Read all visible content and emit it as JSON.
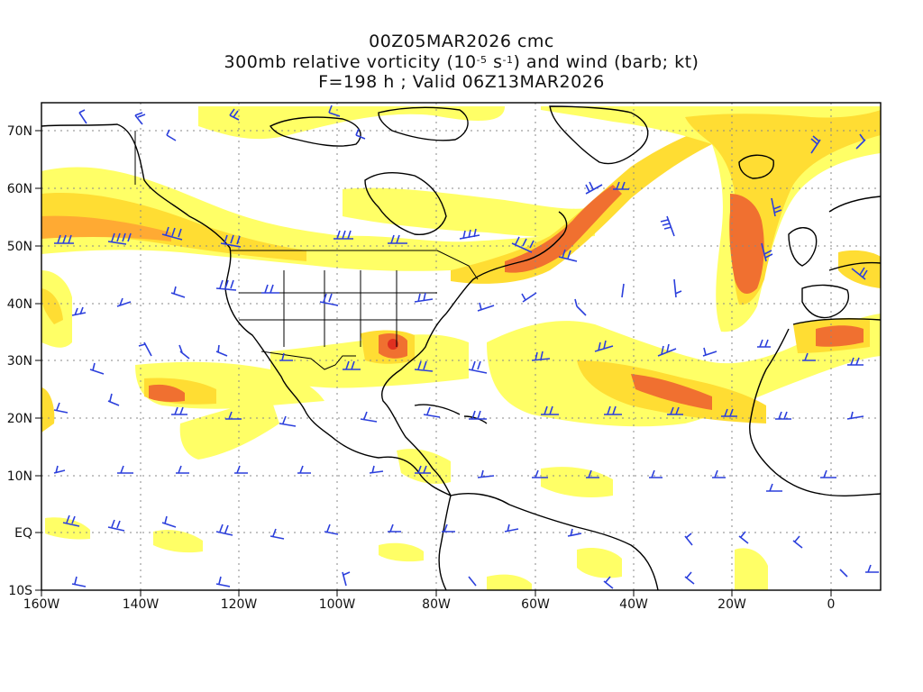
{
  "title": {
    "line1": "00Z05MAR2026 cmc",
    "line2_prefix": "300mb relative vorticity (10",
    "line2_exp1": "-5",
    "line2_mid": " s",
    "line2_exp2": "-1",
    "line2_suffix": ") and wind (barb; kt)",
    "line3": "F=198 h ; Valid 06Z13MAR2026"
  },
  "axes": {
    "lon_labels": [
      "160W",
      "140W",
      "120W",
      "100W",
      "80W",
      "60W",
      "40W",
      "20W",
      "0"
    ],
    "lat_labels": [
      "70N",
      "60N",
      "50N",
      "40N",
      "30N",
      "20N",
      "10N",
      "EQ",
      "10S"
    ],
    "lon_range": [
      -160,
      10
    ],
    "lat_range": [
      -10,
      75
    ]
  },
  "colors": {
    "vorticity_light": "#ffff66",
    "vorticity_mid1": "#ffdd33",
    "vorticity_mid2": "#ffaa33",
    "vorticity_high": "#f07030",
    "vorticity_max": "#e03020",
    "barb": "#2b3fdc",
    "coast": "#000000",
    "grid": "#888888"
  }
}
